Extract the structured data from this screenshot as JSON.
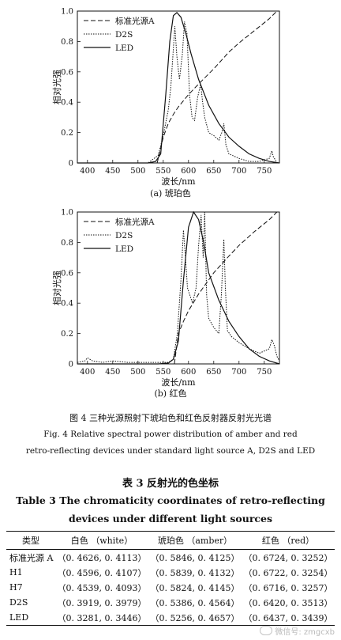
{
  "chart_data": [
    {
      "type": "line",
      "xlabel": "波长/nm",
      "ylabel": "相对光强",
      "xlim": [
        380,
        780
      ],
      "ylim": [
        0,
        1.0
      ],
      "xticks": [
        400,
        450,
        500,
        550,
        600,
        650,
        700,
        750
      ],
      "yticks": [
        0,
        0.2,
        0.4,
        0.6,
        0.8,
        1.0
      ],
      "legend": [
        "标准光源A",
        "D2S",
        "LED"
      ],
      "series": [
        {
          "name": "标准光源A",
          "style": "dashed",
          "x": [
            538,
            550,
            560,
            570,
            580,
            600,
            620,
            650,
            680,
            700,
            730,
            760,
            775
          ],
          "y": [
            0.0,
            0.17,
            0.26,
            0.32,
            0.37,
            0.45,
            0.52,
            0.62,
            0.73,
            0.79,
            0.87,
            0.95,
            1.0
          ]
        },
        {
          "name": "D2S",
          "style": "dotted",
          "x": [
            380,
            500,
            520,
            540,
            550,
            560,
            565,
            570,
            573,
            577,
            582,
            588,
            592,
            597,
            602,
            607,
            612,
            618,
            624,
            628,
            632,
            640,
            650,
            660,
            666,
            670,
            674,
            680,
            700,
            720,
            740,
            760,
            765,
            768,
            772,
            775
          ],
          "y": [
            0.0,
            0.0,
            0.0,
            0.05,
            0.18,
            0.35,
            0.5,
            0.75,
            0.9,
            0.7,
            0.55,
            0.72,
            0.93,
            0.85,
            0.45,
            0.3,
            0.28,
            0.43,
            0.52,
            0.4,
            0.3,
            0.2,
            0.18,
            0.15,
            0.2,
            0.26,
            0.12,
            0.06,
            0.03,
            0.01,
            0.01,
            0.03,
            0.08,
            0.04,
            0.02,
            0.0
          ]
        },
        {
          "name": "LED",
          "style": "solid",
          "x": [
            380,
            500,
            520,
            535,
            545,
            555,
            563,
            570,
            577,
            585,
            595,
            605,
            620,
            640,
            660,
            680,
            700,
            720,
            740,
            760,
            780
          ],
          "y": [
            0.0,
            0.0,
            0.0,
            0.01,
            0.06,
            0.45,
            0.8,
            0.97,
            0.99,
            0.96,
            0.85,
            0.72,
            0.55,
            0.38,
            0.26,
            0.17,
            0.11,
            0.06,
            0.03,
            0.01,
            0.0
          ]
        }
      ]
    },
    {
      "type": "line",
      "xlabel": "波长/nm",
      "ylabel": "相对光强",
      "xlim": [
        380,
        780
      ],
      "ylim": [
        0,
        1.0
      ],
      "xticks": [
        400,
        450,
        500,
        550,
        600,
        650,
        700,
        750
      ],
      "yticks": [
        0,
        0.2,
        0.4,
        0.6,
        0.8,
        1.0
      ],
      "legend": [
        "标准光源A",
        "D2S",
        "LED"
      ],
      "series": [
        {
          "name": "标准光源A",
          "style": "dashed",
          "x": [
            572,
            580,
            590,
            600,
            620,
            650,
            680,
            700,
            730,
            760,
            775
          ],
          "y": [
            0.0,
            0.2,
            0.28,
            0.35,
            0.46,
            0.6,
            0.71,
            0.78,
            0.87,
            0.95,
            1.0
          ]
        },
        {
          "name": "D2S",
          "style": "dotted",
          "x": [
            380,
            395,
            400,
            410,
            430,
            450,
            480,
            500,
            530,
            560,
            570,
            578,
            585,
            590,
            594,
            598,
            603,
            608,
            615,
            620,
            625,
            629,
            632,
            636,
            640,
            650,
            660,
            665,
            670,
            673,
            677,
            685,
            700,
            720,
            740,
            760,
            765,
            770,
            775,
            780
          ],
          "y": [
            0.01,
            0.02,
            0.04,
            0.02,
            0.01,
            0.02,
            0.01,
            0.01,
            0.01,
            0.01,
            0.03,
            0.2,
            0.55,
            0.88,
            0.7,
            0.5,
            0.45,
            0.4,
            0.5,
            0.78,
            0.98,
            0.7,
            1.0,
            0.45,
            0.3,
            0.24,
            0.2,
            0.45,
            0.82,
            0.5,
            0.22,
            0.18,
            0.14,
            0.1,
            0.07,
            0.1,
            0.16,
            0.12,
            0.05,
            0.02
          ]
        },
        {
          "name": "LED",
          "style": "solid",
          "x": [
            380,
            540,
            560,
            570,
            580,
            590,
            600,
            610,
            620,
            630,
            640,
            660,
            680,
            700,
            720,
            740,
            760,
            780
          ],
          "y": [
            0.0,
            0.0,
            0.005,
            0.03,
            0.15,
            0.55,
            0.9,
            1.0,
            0.95,
            0.8,
            0.6,
            0.42,
            0.28,
            0.18,
            0.1,
            0.05,
            0.02,
            0.0
          ]
        }
      ]
    }
  ],
  "figure": {
    "sub_a": "(a) 琥珀色",
    "sub_b": "(b) 红色",
    "caption_cn": "图 4   三种光源照射下琥珀色和红色反射器反射光光谱",
    "caption_en_1": "Fig. 4    Relative spectral power distribution of amber and red",
    "caption_en_2": "retro-reflecting devices under standard light source A,  D2S and LED"
  },
  "table": {
    "title_cn": "表 3   反射光的色坐标",
    "title_en_1": "Table 3    The chromaticity coordinates of retro-reflecting",
    "title_en_2": "devices under different light sources",
    "headers": [
      "类型",
      "白色 （white）",
      "琥珀色 （amber）",
      "红色 （red）"
    ],
    "rows": [
      [
        "标准光源 A",
        "（0. 4626,  0. 4113）",
        "（0. 5846,  0. 4125）",
        "（0. 6724,  0. 3252）"
      ],
      [
        "H1",
        "（0. 4596,  0. 4107）",
        "（0. 5839,  0. 4132）",
        "（0. 6722,  0. 3254）"
      ],
      [
        "H7",
        "（0. 4539,  0. 4093）",
        "（0. 5824,  0. 4145）",
        "（0. 6716,  0. 3257）"
      ],
      [
        "D2S",
        "（0. 3919,  0. 3979）",
        "（0. 5386,  0. 4564）",
        "（0. 6420,  0. 3513）"
      ],
      [
        "LED",
        "（0. 3281,  0. 3446）",
        "（0. 5256,  0. 4657）",
        "（0. 6437,  0. 3439）"
      ]
    ]
  },
  "watermark": {
    "text": "微信号: zmgcxb",
    "icon": "wechat-icon"
  }
}
